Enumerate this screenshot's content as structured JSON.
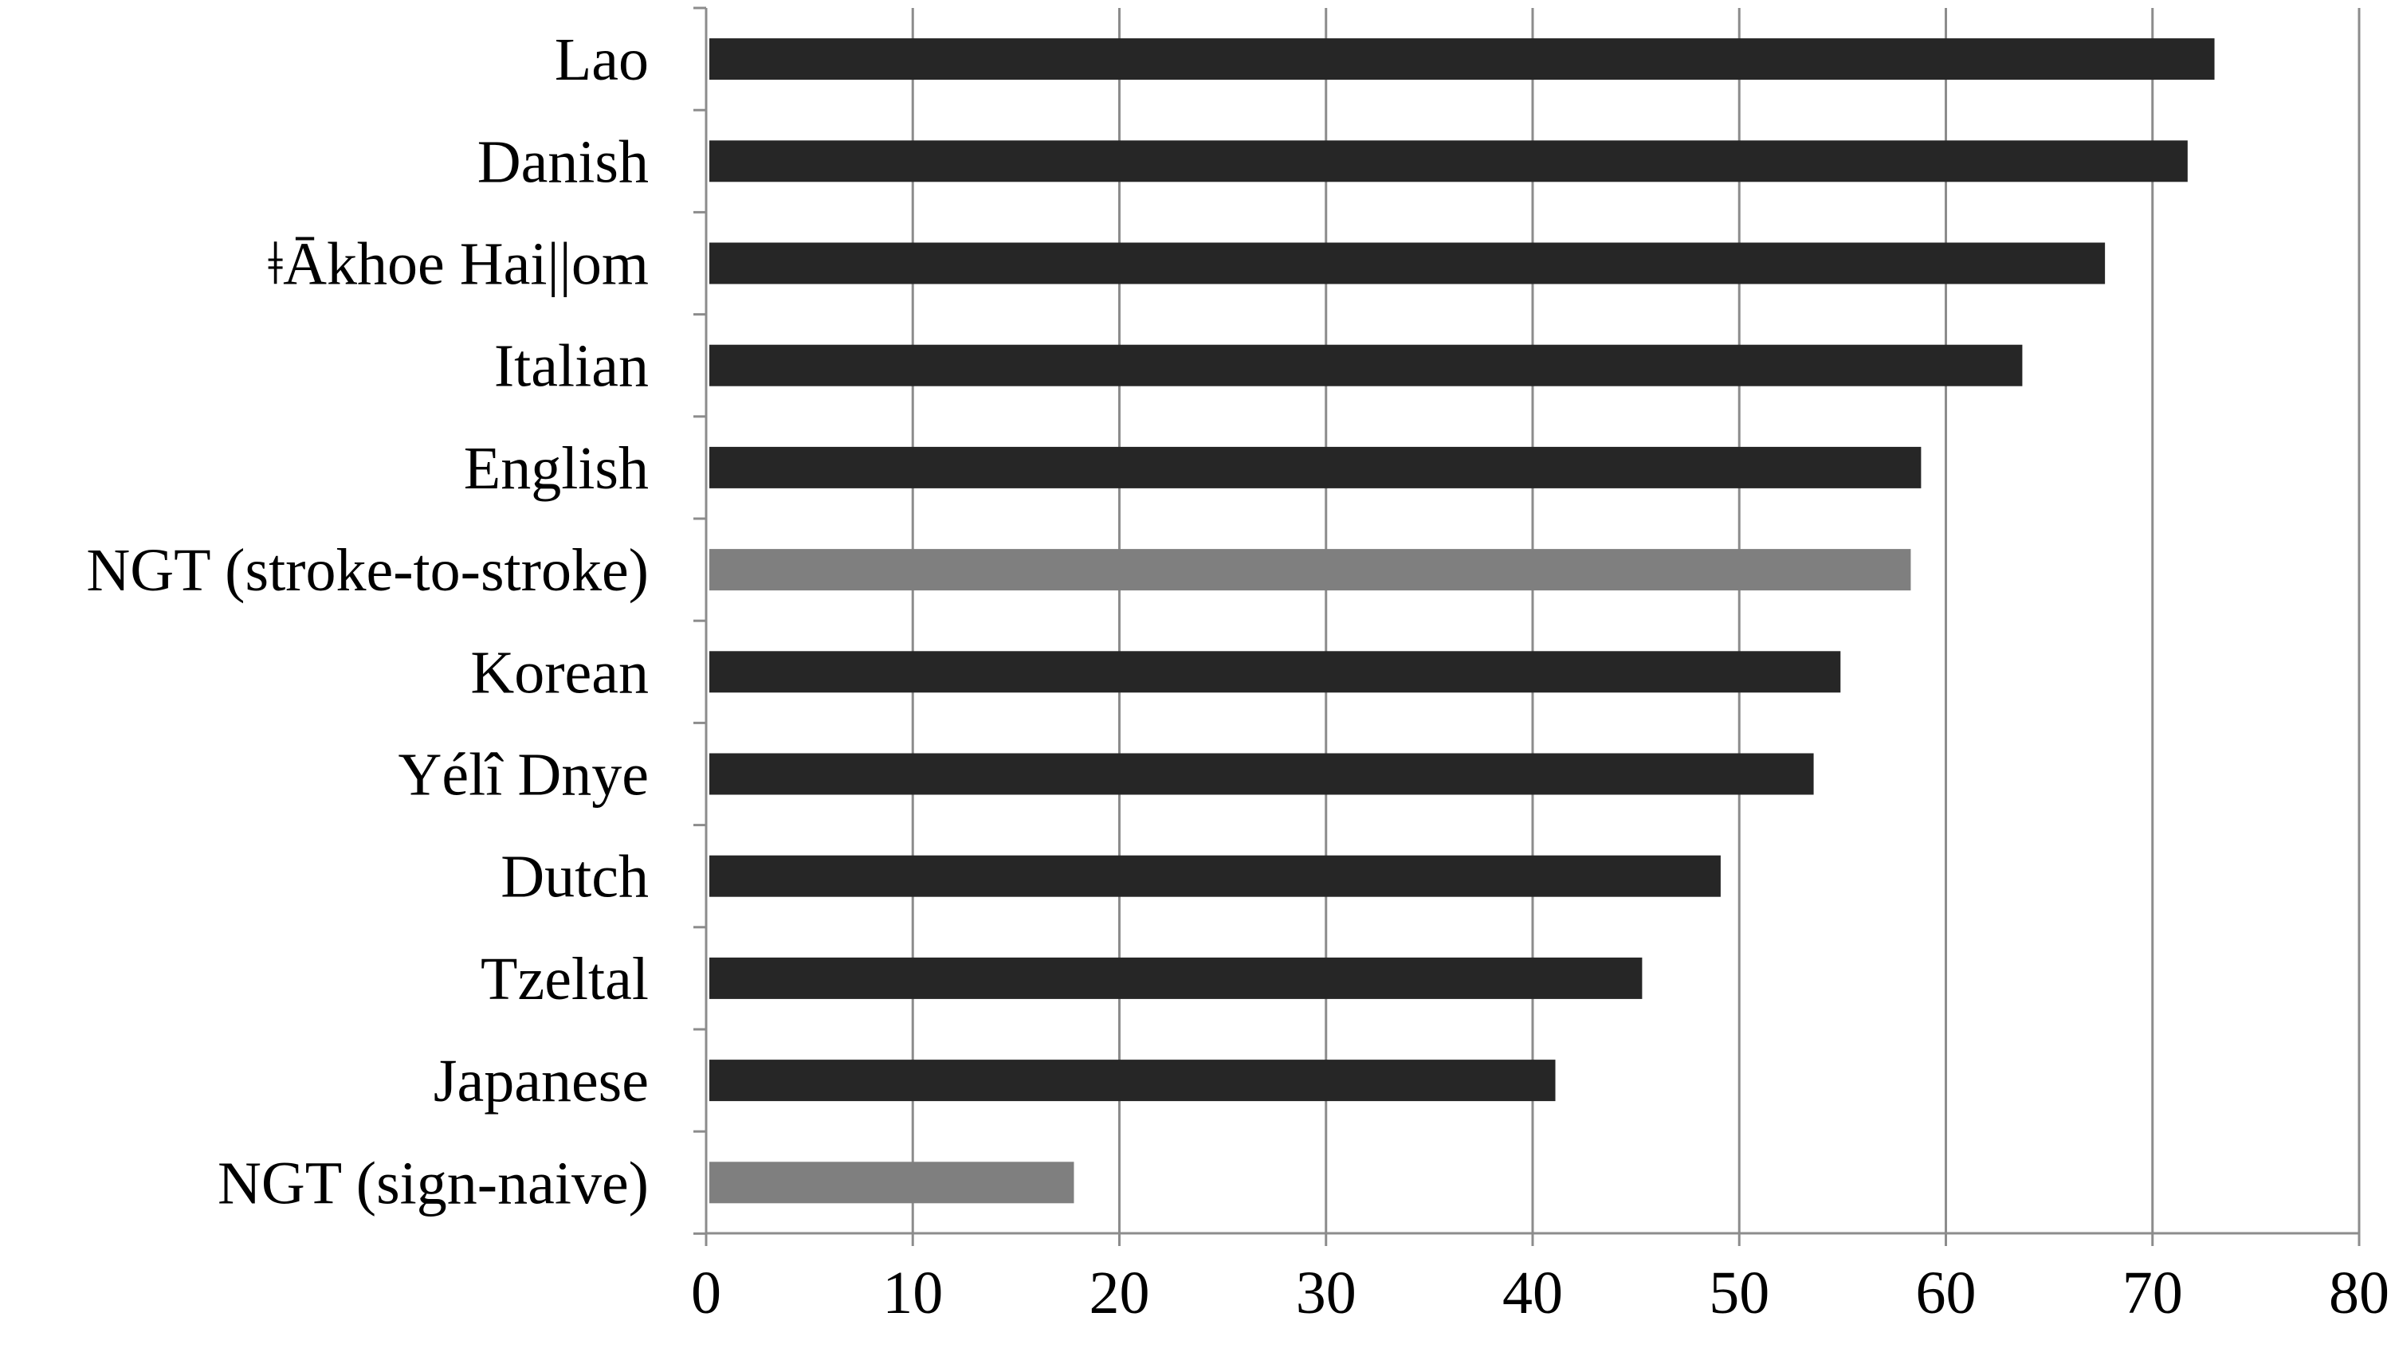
{
  "chart_data": {
    "type": "bar",
    "orientation": "horizontal",
    "title": "",
    "xlabel": "",
    "ylabel": "",
    "categories": [
      "Lao",
      "Danish",
      "ǂĀkhoe Hai||om",
      "Italian",
      "English",
      "NGT (stroke-to-stroke)",
      "Korean",
      "Yélî Dnye",
      "Dutch",
      "Tzeltal",
      "Japanese",
      "NGT (sign-naive)"
    ],
    "values": [
      73,
      71.7,
      67.7,
      63.7,
      58.8,
      58.3,
      54.9,
      53.6,
      49.1,
      45.3,
      41.1,
      17.8
    ],
    "bar_colors": [
      "#262626",
      "#262626",
      "#262626",
      "#262626",
      "#262626",
      "#7f7f7f",
      "#262626",
      "#262626",
      "#262626",
      "#262626",
      "#262626",
      "#7f7f7f"
    ],
    "xlim": [
      0,
      80
    ],
    "xticks": [
      "0",
      "10",
      "20",
      "30",
      "40",
      "50",
      "60",
      "70",
      "80"
    ],
    "grid": "vertical",
    "legend": "none"
  },
  "colors": {
    "grid": "#8c8c8c",
    "axis": "#8c8c8c",
    "text": "#000000"
  }
}
